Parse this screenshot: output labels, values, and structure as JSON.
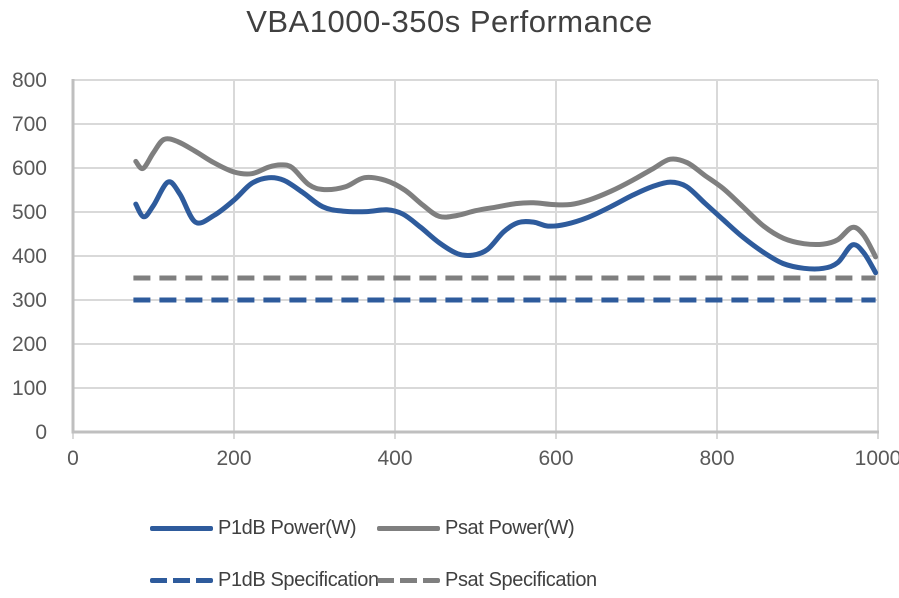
{
  "title": "VBA1000-350s Performance",
  "chart_data": {
    "type": "line",
    "title": "VBA1000-350s Performance",
    "xlabel": "",
    "ylabel": "",
    "xlim": [
      0,
      1000
    ],
    "ylim": [
      0,
      800
    ],
    "x_ticks": [
      0,
      200,
      400,
      600,
      800,
      1000
    ],
    "y_ticks": [
      0,
      100,
      200,
      300,
      400,
      500,
      600,
      700,
      800
    ],
    "grid": true,
    "grid_color": "#d9d9d9",
    "axis_color": "#bfbfbf",
    "tick_label_color": "#595959",
    "title_color": "#404040",
    "legend_text_color": "#404040",
    "legend_position": "bottom",
    "series": [
      {
        "name": "P1dB Power(W)",
        "color": "#2e5b9c",
        "style": "solid",
        "smooth": true,
        "points": [
          [
            78,
            518
          ],
          [
            88,
            489
          ],
          [
            100,
            515
          ],
          [
            118,
            568
          ],
          [
            133,
            540
          ],
          [
            152,
            477
          ],
          [
            175,
            492
          ],
          [
            200,
            527
          ],
          [
            222,
            565
          ],
          [
            243,
            578
          ],
          [
            262,
            572
          ],
          [
            285,
            545
          ],
          [
            310,
            512
          ],
          [
            335,
            502
          ],
          [
            365,
            501
          ],
          [
            390,
            505
          ],
          [
            410,
            495
          ],
          [
            432,
            465
          ],
          [
            455,
            430
          ],
          [
            478,
            405
          ],
          [
            497,
            402
          ],
          [
            515,
            415
          ],
          [
            535,
            455
          ],
          [
            553,
            476
          ],
          [
            572,
            477
          ],
          [
            590,
            468
          ],
          [
            612,
            472
          ],
          [
            640,
            488
          ],
          [
            668,
            512
          ],
          [
            695,
            538
          ],
          [
            720,
            558
          ],
          [
            742,
            568
          ],
          [
            762,
            558
          ],
          [
            785,
            520
          ],
          [
            808,
            482
          ],
          [
            832,
            443
          ],
          [
            858,
            408
          ],
          [
            882,
            383
          ],
          [
            908,
            372
          ],
          [
            932,
            372
          ],
          [
            950,
            385
          ],
          [
            968,
            425
          ],
          [
            982,
            408
          ],
          [
            997,
            362
          ]
        ]
      },
      {
        "name": "Psat Power(W)",
        "color": "#7f7f7f",
        "style": "solid",
        "smooth": true,
        "points": [
          [
            78,
            615
          ],
          [
            87,
            599
          ],
          [
            100,
            635
          ],
          [
            113,
            665
          ],
          [
            130,
            660
          ],
          [
            152,
            638
          ],
          [
            175,
            612
          ],
          [
            200,
            591
          ],
          [
            222,
            587
          ],
          [
            243,
            602
          ],
          [
            258,
            607
          ],
          [
            272,
            601
          ],
          [
            293,
            562
          ],
          [
            312,
            551
          ],
          [
            338,
            557
          ],
          [
            362,
            578
          ],
          [
            388,
            572
          ],
          [
            412,
            550
          ],
          [
            435,
            515
          ],
          [
            455,
            490
          ],
          [
            477,
            492
          ],
          [
            500,
            503
          ],
          [
            525,
            511
          ],
          [
            550,
            519
          ],
          [
            572,
            521
          ],
          [
            595,
            517
          ],
          [
            618,
            517
          ],
          [
            642,
            528
          ],
          [
            668,
            547
          ],
          [
            695,
            572
          ],
          [
            720,
            598
          ],
          [
            742,
            620
          ],
          [
            763,
            612
          ],
          [
            785,
            583
          ],
          [
            808,
            553
          ],
          [
            832,
            512
          ],
          [
            858,
            468
          ],
          [
            883,
            440
          ],
          [
            908,
            428
          ],
          [
            932,
            427
          ],
          [
            950,
            437
          ],
          [
            968,
            465
          ],
          [
            982,
            448
          ],
          [
            997,
            398
          ]
        ]
      },
      {
        "name": "P1dB Specification",
        "color": "#2e5b9c",
        "style": "dashed",
        "smooth": false,
        "points": [
          [
            75,
            300
          ],
          [
            997,
            300
          ]
        ]
      },
      {
        "name": "Psat Specification",
        "color": "#7f7f7f",
        "style": "dashed",
        "smooth": false,
        "points": [
          [
            75,
            350
          ],
          [
            997,
            350
          ]
        ]
      }
    ]
  }
}
